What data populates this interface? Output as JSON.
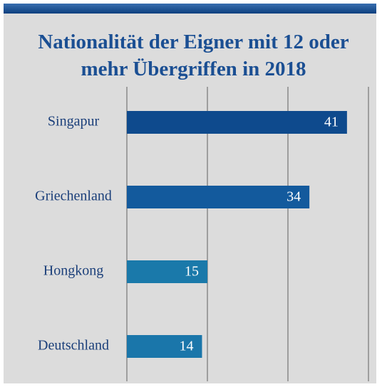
{
  "chart_data": {
    "type": "bar",
    "orientation": "horizontal",
    "title": "Nationalität der Eigner mit 12 oder mehr Übergriffen in 2018",
    "categories": [
      "Singapur",
      "Griechenland",
      "Hongkong",
      "Deutschland"
    ],
    "values": [
      41,
      34,
      15,
      14
    ],
    "colors": [
      "#0e4a8d",
      "#135a9d",
      "#1a79aa",
      "#1a76aa"
    ],
    "xlim": [
      0,
      45
    ],
    "xticks": [
      0,
      15,
      30,
      45
    ],
    "grid": true
  }
}
